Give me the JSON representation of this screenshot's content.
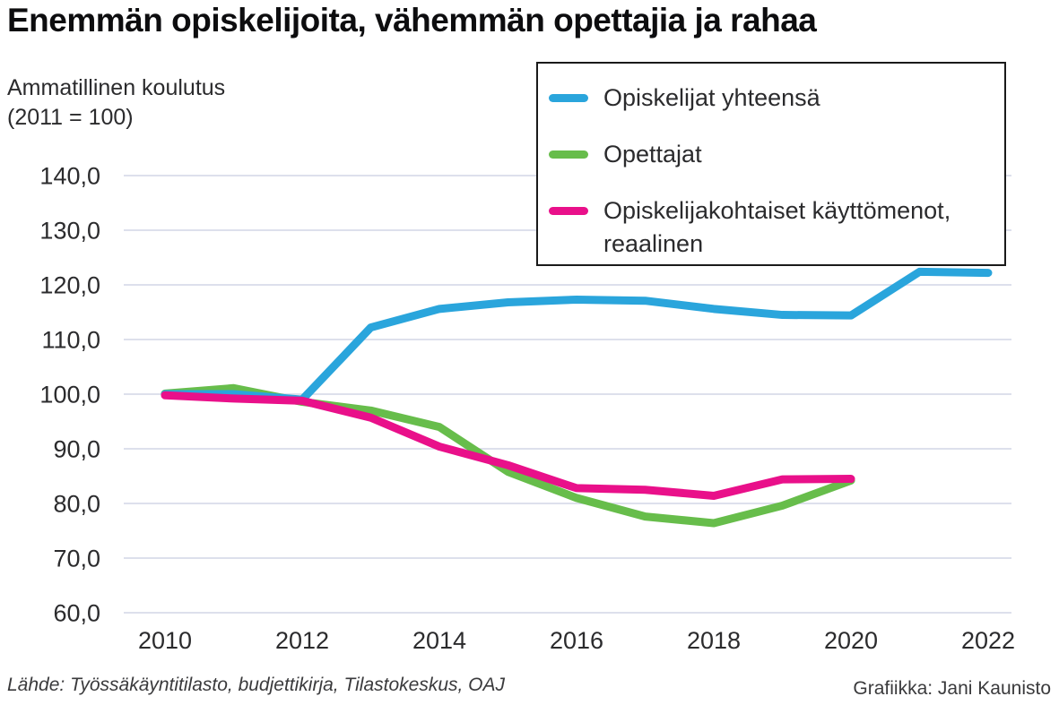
{
  "title": "Enemmän opiskelijoita, vähemmän opettajia ja rahaa",
  "subtitle_line1": "Ammatillinen koulutus",
  "subtitle_line2": "(2011 = 100)",
  "legend": {
    "items": [
      {
        "label": "Opiskelijat yhteensä",
        "color": "#2AA5DC"
      },
      {
        "label": "Opettajat",
        "color": "#67BD4B"
      },
      {
        "label": "Opiskelijakohtaiset käyttömenot, reaalinen",
        "color": "#E9108A"
      }
    ]
  },
  "footer": {
    "source": "Lähde: Työssäkäyntitilasto, budjettikirja, Tilastokeskus, OAJ",
    "credit": "Grafiikka: Jani Kaunisto"
  },
  "chart_data": {
    "type": "line",
    "title": "Enemmän opiskelijoita, vähemmän opettajia ja rahaa",
    "subtitle": "Ammatillinen koulutus (2011 = 100)",
    "x": [
      2010,
      2011,
      2012,
      2013,
      2014,
      2015,
      2016,
      2017,
      2018,
      2019,
      2020,
      2021,
      2022
    ],
    "x_ticks": [
      2010,
      2012,
      2014,
      2016,
      2018,
      2020,
      2022
    ],
    "x_tick_labels": [
      "2010",
      "2012",
      "2014",
      "2016",
      "2018",
      "2020",
      "2022"
    ],
    "y_ticks": [
      140,
      130,
      120,
      110,
      100,
      90,
      80,
      70,
      60
    ],
    "y_tick_labels": [
      "140,0",
      "130,0",
      "120,0",
      "110,0",
      "100,0",
      "90,0",
      "80,0",
      "70,0",
      "60,0"
    ],
    "ylim": [
      60,
      140
    ],
    "grid": "horizontal",
    "grid_color": "#D8DBEA",
    "legend_position": "top-right boxed",
    "series": [
      {
        "name": "Opettajat",
        "color": "#67BD4B",
        "values": [
          100.1,
          101.1,
          98.6,
          97.0,
          94.0,
          85.8,
          81.0,
          77.6,
          76.4,
          79.6,
          84.2
        ]
      },
      {
        "name": "Opiskelijat yhteensä",
        "color": "#2AA5DC",
        "values": [
          100.0,
          100.0,
          99.0,
          112.2,
          115.6,
          116.8,
          117.3,
          117.1,
          115.6,
          114.5,
          114.4,
          122.4,
          122.2
        ]
      },
      {
        "name": "Opiskelijakohtaiset käyttömenot, reaalinen",
        "color": "#E9108A",
        "values": [
          99.8,
          99.2,
          98.8,
          95.7,
          90.4,
          87.0,
          82.8,
          82.5,
          81.4,
          84.4,
          84.5
        ]
      }
    ]
  }
}
